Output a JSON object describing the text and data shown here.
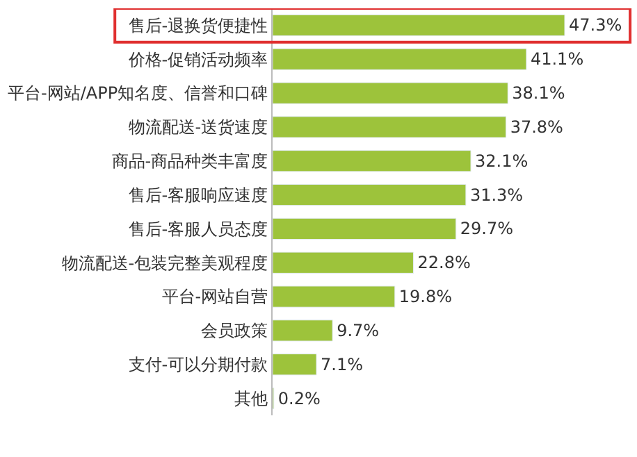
{
  "chart_data": {
    "type": "bar",
    "orientation": "horizontal",
    "categories": [
      "售后-退换货便捷性",
      "价格-促销活动频率",
      "平台-网站/APP知名度、信誉和口碑",
      "物流配送-送货速度",
      "商品-商品种类丰富度",
      "售后-客服响应速度",
      "售后-客服人员态度",
      "物流配送-包装完整美观程度",
      "平台-网站自营",
      "会员政策",
      "支付-可以分期付款",
      "其他"
    ],
    "values": [
      47.3,
      41.1,
      38.1,
      37.8,
      32.1,
      31.3,
      29.7,
      22.8,
      19.8,
      9.7,
      7.1,
      0.2
    ],
    "value_labels": [
      "47.3%",
      "41.1%",
      "38.1%",
      "37.8%",
      "32.1%",
      "31.3%",
      "29.7%",
      "22.8%",
      "19.8%",
      "9.7%",
      "7.1%",
      "0.2%"
    ],
    "color": "#9dc33b",
    "legend": false
  }
}
